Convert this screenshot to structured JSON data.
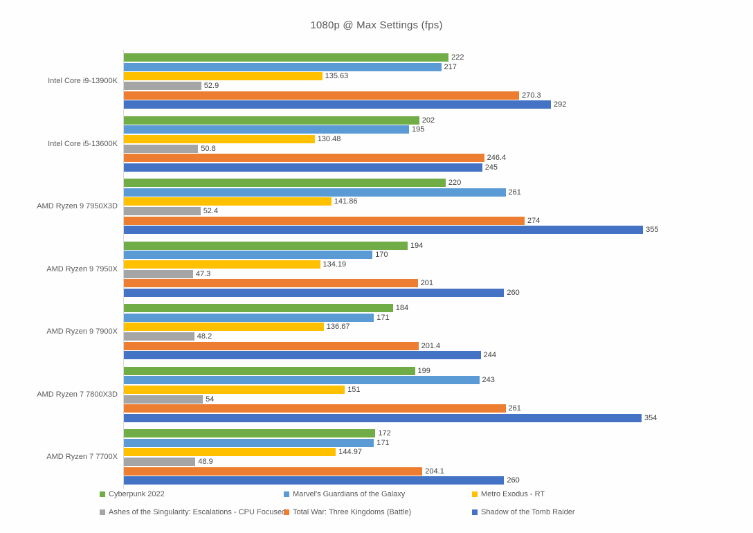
{
  "title": "1080p @ Max Settings (fps)",
  "chart_data": {
    "type": "bar",
    "orientation": "horizontal",
    "title": "1080p @ Max Settings (fps)",
    "value_unit": "fps",
    "xlim": [
      0,
      400
    ],
    "grid": false,
    "legend_position": "bottom",
    "axis_line_color": "#d9d9d9",
    "title_color": "#595959",
    "label_color": "#404040",
    "categories": [
      "Intel Core i9-13900K",
      "Intel Core i5-13600K",
      "AMD Ryzen 9 7950X3D",
      "AMD Ryzen 9 7950X",
      "AMD Ryzen 9 7900X",
      "AMD Ryzen 7 7800X3D",
      "AMD Ryzen 7 7700X"
    ],
    "series": [
      {
        "name": "Cyberpunk 2022",
        "color": "#70AD47",
        "values": [
          222,
          202,
          220,
          194,
          184,
          199,
          172
        ]
      },
      {
        "name": "Marvel's Guardians of the Galaxy",
        "color": "#5B9BD5",
        "values": [
          217,
          195,
          261,
          170,
          171,
          243,
          171
        ]
      },
      {
        "name": "Metro Exodus - RT",
        "color": "#FFC000",
        "values": [
          135.63,
          130.48,
          141.86,
          134.19,
          136.67,
          151,
          144.97
        ]
      },
      {
        "name": "Ashes of the Singularity: Escalations - CPU Focused",
        "color": "#A5A5A5",
        "values": [
          52.9,
          50.8,
          52.4,
          47.3,
          48.2,
          54,
          48.9
        ]
      },
      {
        "name": "Total War: Three Kingdoms (Battle)",
        "color": "#ED7D31",
        "values": [
          270.3,
          246.4,
          274,
          201,
          201.4,
          261,
          204.1
        ]
      },
      {
        "name": "Shadow of the Tomb Raider",
        "color": "#4472C4",
        "values": [
          292,
          245,
          355,
          260,
          244,
          354,
          260
        ]
      }
    ]
  }
}
